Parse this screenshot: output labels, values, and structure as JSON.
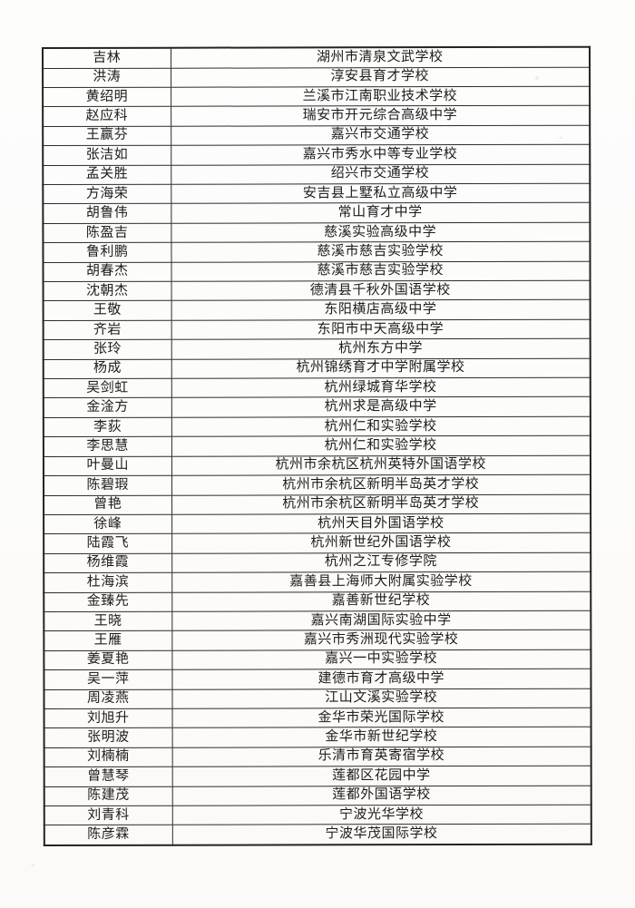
{
  "document": {
    "kind": "scanned roster table",
    "rows": [
      {
        "name": "吉林",
        "school": "湖州市清泉文武学校"
      },
      {
        "name": "洪涛",
        "school": "淳安县育才学校"
      },
      {
        "name": "黄绍明",
        "school": "兰溪市江南职业技术学校"
      },
      {
        "name": "赵应科",
        "school": "瑞安市开元综合高级中学"
      },
      {
        "name": "王赢芬",
        "school": "嘉兴市交通学校"
      },
      {
        "name": "张洁如",
        "school": "嘉兴市秀水中等专业学校"
      },
      {
        "name": "孟关胜",
        "school": "绍兴市交通学校"
      },
      {
        "name": "方海荣",
        "school": "安吉县上墅私立高级中学"
      },
      {
        "name": "胡鲁伟",
        "school": "常山育才中学"
      },
      {
        "name": "陈盈吉",
        "school": "慈溪实验高级中学"
      },
      {
        "name": "鲁利鹏",
        "school": "慈溪市慈吉实验学校"
      },
      {
        "name": "胡春杰",
        "school": "慈溪市慈吉实验学校"
      },
      {
        "name": "沈朝杰",
        "school": "德清县千秋外国语学校"
      },
      {
        "name": "王敬",
        "school": "东阳横店高级中学"
      },
      {
        "name": "齐岩",
        "school": "东阳市中天高级中学"
      },
      {
        "name": "张玲",
        "school": "杭州东方中学"
      },
      {
        "name": "杨成",
        "school": "杭州锦绣育才中学附属学校"
      },
      {
        "name": "吴剑虹",
        "school": "杭州绿城育华学校"
      },
      {
        "name": "金淦方",
        "school": "杭州求是高级中学"
      },
      {
        "name": "李荻",
        "school": "杭州仁和实验学校"
      },
      {
        "name": "李思慧",
        "school": "杭州仁和实验学校"
      },
      {
        "name": "叶曼山",
        "school": "杭州市余杭区杭州英特外国语学校"
      },
      {
        "name": "陈碧瑕",
        "school": "杭州市余杭区新明半岛英才学校"
      },
      {
        "name": "曾艳",
        "school": "杭州市余杭区新明半岛英才学校"
      },
      {
        "name": "徐峰",
        "school": "杭州天目外国语学校"
      },
      {
        "name": "陆霞飞",
        "school": "杭州新世纪外国语学校"
      },
      {
        "name": "杨维霞",
        "school": "杭州之江专修学院"
      },
      {
        "name": "杜海滨",
        "school": "嘉善县上海师大附属实验学校"
      },
      {
        "name": "金臻先",
        "school": "嘉善新世纪学校"
      },
      {
        "name": "王晓",
        "school": "嘉兴南湖国际实验中学"
      },
      {
        "name": "王雁",
        "school": "嘉兴市秀洲现代实验学校"
      },
      {
        "name": "姜夏艳",
        "school": "嘉兴一中实验学校"
      },
      {
        "name": "吴一萍",
        "school": "建德市育才高级中学"
      },
      {
        "name": "周凌燕",
        "school": "江山文溪实验学校"
      },
      {
        "name": "刘旭升",
        "school": "金华市荣光国际学校"
      },
      {
        "name": "张明波",
        "school": "金华市新世纪学校"
      },
      {
        "name": "刘楠楠",
        "school": "乐清市育英寄宿学校"
      },
      {
        "name": "曾慧琴",
        "school": "莲都区花园中学"
      },
      {
        "name": "陈建茂",
        "school": "莲都外国语学校"
      },
      {
        "name": "刘青科",
        "school": "宁波光华学校"
      },
      {
        "name": "陈彦霖",
        "school": "宁波华茂国际学校"
      }
    ]
  },
  "colors": {
    "paper": "#fdfdfc",
    "table_border": "#2e2c2b",
    "text": "#1d1c1b"
  }
}
